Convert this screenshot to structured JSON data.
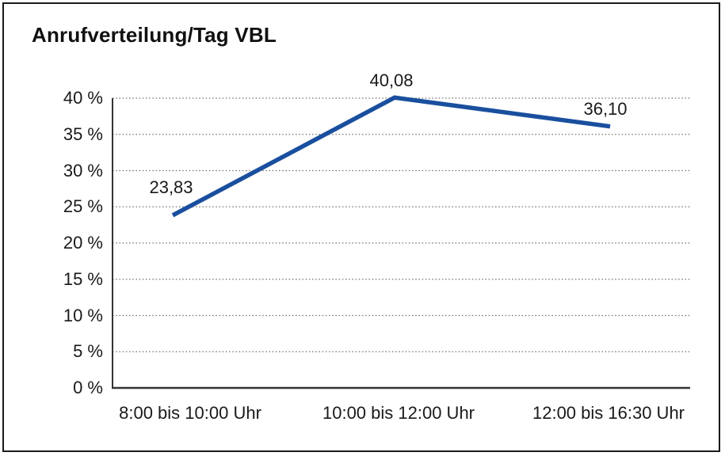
{
  "colors": {
    "line": "#1A4F9E",
    "grid": "#777777",
    "axis": "#333333",
    "text": "#1a1a1a",
    "border": "#1a1a1a",
    "background": "#ffffff"
  },
  "chart_data": {
    "type": "line",
    "title": "Anrufverteilung/Tag VBL",
    "categories": [
      "8:00 bis 10:00 Uhr",
      "10:00 bis 12:00 Uhr",
      "12:00 bis 16:30 Uhr"
    ],
    "values": [
      23.83,
      40.08,
      36.1
    ],
    "value_labels": [
      "23,83",
      "40,08",
      "36,10"
    ],
    "xlabel": "",
    "ylabel": "",
    "ylim": [
      0,
      40
    ],
    "yticks": [
      40,
      35,
      30,
      25,
      20,
      15,
      10,
      5,
      0
    ],
    "ytick_labels": [
      "40 %",
      "35 %",
      "30 %",
      "25 %",
      "20 %",
      "15 %",
      "10 %",
      "5 %",
      "0 %"
    ],
    "grid": "horizontal-dotted",
    "legend": "none",
    "line_width": 5.5
  }
}
